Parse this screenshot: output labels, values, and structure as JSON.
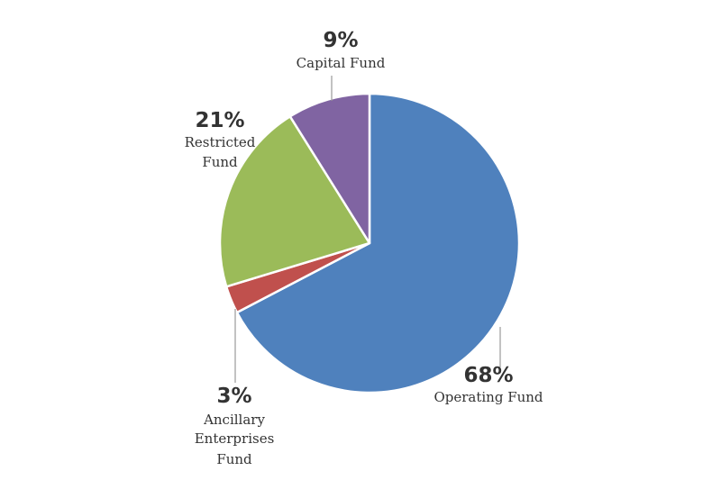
{
  "chart_data": {
    "type": "pie",
    "title": "",
    "slices": [
      {
        "label": "Operating Fund",
        "label_lines": [
          "Operating Fund"
        ],
        "percent_label": "68%",
        "value": 68,
        "color": "#4F81BD"
      },
      {
        "label": "Ancillary Enterprises Fund",
        "label_lines": [
          "Ancillary",
          "Enterprises",
          "Fund"
        ],
        "percent_label": "3%",
        "value": 3,
        "color": "#C0504D"
      },
      {
        "label": "Restricted Fund",
        "label_lines": [
          "Restricted",
          "Fund"
        ],
        "percent_label": "21%",
        "value": 21,
        "color": "#9BBB59"
      },
      {
        "label": "Capital Fund",
        "label_lines": [
          "Capital Fund"
        ],
        "percent_label": "9%",
        "value": 9,
        "color": "#8064A2"
      }
    ],
    "start_angle_deg": 0,
    "direction": "clockwise",
    "legend": "none"
  }
}
